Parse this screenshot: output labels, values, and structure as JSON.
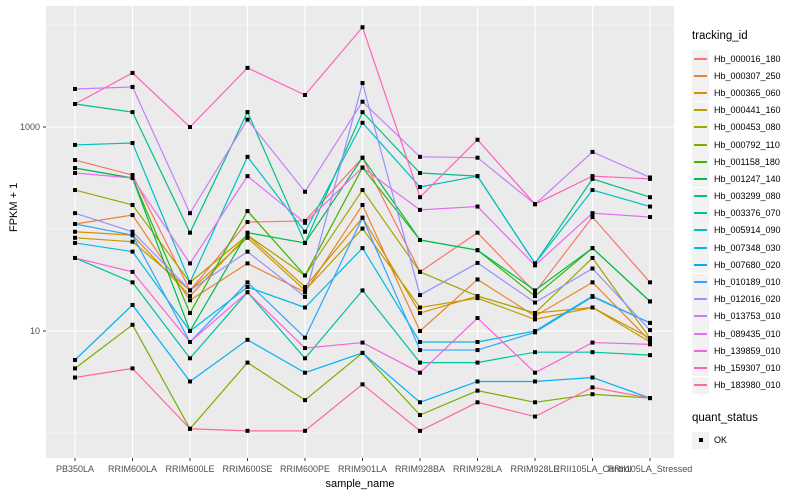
{
  "figure": {
    "y_axis_title": "FPKM + 1",
    "x_axis_title": "sample_name",
    "legend_title": "tracking_id",
    "quant_legend_title": "quant_status",
    "quant_legend_items": [
      "OK"
    ],
    "panel_bg": "#EBEBEB",
    "grid_color": "#FFFFFF",
    "tick_text_color": "#4D4D4D",
    "point_color": "#000000"
  },
  "chart_data": {
    "type": "line",
    "title": "",
    "xlabel": "sample_name",
    "ylabel": "FPKM + 1",
    "y_scale": "log10",
    "ylim": [
      0.57,
      15000
    ],
    "y_tick_values": [
      10,
      1000
    ],
    "y_tick_labels": [
      "10",
      "1000"
    ],
    "y_minor_gridlines": [
      1,
      100,
      10000
    ],
    "grid": true,
    "legend_position": "right",
    "legend_title": "tracking_id",
    "quant_status": {
      "title": "quant_status",
      "items": [
        "OK"
      ]
    },
    "categories": [
      "PB350LA",
      "RRIM600LA",
      "RRIM600LE",
      "RRIM600SE",
      "RRIM600PE",
      "RRIM901LA",
      "RRIM928BA",
      "RRIM928LA",
      "RRIM928LE",
      "RRII105LA_Control",
      "RRII105LA_Stressed"
    ],
    "series": [
      {
        "name": "Hb_000016_180",
        "color": "#F8766D",
        "values": [
          474,
          338,
          25,
          117,
          120,
          500,
          38,
          92,
          24,
          131,
          30
        ]
      },
      {
        "name": "Hb_000307_250",
        "color": "#EA8331",
        "values": [
          112,
          137,
          20,
          46,
          24,
          172,
          10,
          32,
          14,
          30,
          8
        ]
      },
      {
        "name": "Hb_000365_060",
        "color": "#D89000",
        "values": [
          94,
          87,
          22,
          87,
          27,
          129,
          15,
          22,
          15,
          17,
          8.5
        ]
      },
      {
        "name": "Hb_000441_160",
        "color": "#C09B00",
        "values": [
          82,
          75,
          25,
          82,
          25,
          101,
          17,
          21,
          13,
          17,
          7.8
        ]
      },
      {
        "name": "Hb_000453_080",
        "color": "#A3A500",
        "values": [
          241,
          172,
          30,
          87,
          35,
          241,
          38,
          22,
          15,
          52,
          8.5
        ]
      },
      {
        "name": "Hb_000792_110",
        "color": "#7CAE00",
        "values": [
          4.3,
          11.5,
          1.1,
          4.9,
          2.1,
          6.1,
          1.5,
          2.6,
          2.0,
          2.4,
          2.2
        ]
      },
      {
        "name": "Hb_001158_180",
        "color": "#39B600",
        "values": [
          396,
          316,
          15,
          150,
          35,
          400,
          78,
          62,
          22,
          65,
          19.5
        ]
      },
      {
        "name": "Hb_001247_140",
        "color": "#00BB4E",
        "values": [
          396,
          316,
          10,
          92,
          73,
          500,
          78,
          62,
          25,
          65,
          19.5
        ]
      },
      {
        "name": "Hb_003299_080",
        "color": "#00C087",
        "values": [
          1680,
          1400,
          92,
          1400,
          73,
          1400,
          354,
          330,
          46,
          310,
          205
        ]
      },
      {
        "name": "Hb_003376_070",
        "color": "#00C1A3",
        "values": [
          52,
          30,
          5.4,
          24,
          5.4,
          25,
          4.9,
          4.9,
          6.2,
          6.2,
          5.8
        ]
      },
      {
        "name": "Hb_005914_090",
        "color": "#00BFC4",
        "values": [
          667,
          697,
          30,
          510,
          94,
          1100,
          258,
          330,
          46,
          241,
          166
        ]
      },
      {
        "name": "Hb_007348_030",
        "color": "#00BAE0",
        "values": [
          73,
          60,
          10,
          27,
          17,
          65,
          7.8,
          7.8,
          10,
          22,
          12
        ]
      },
      {
        "name": "Hb_007680_020",
        "color": "#00B0F6",
        "values": [
          5.2,
          18,
          3.2,
          8.2,
          3.9,
          6.1,
          2.0,
          3.2,
          3.2,
          3.5,
          2.2
        ]
      },
      {
        "name": "Hb_010189_010",
        "color": "#35A2FF",
        "values": [
          112,
          87,
          7.8,
          30,
          8.6,
          129,
          6.5,
          6.5,
          9.7,
          21.6,
          12
        ]
      },
      {
        "name": "Hb_012016_020",
        "color": "#9590FF",
        "values": [
          143,
          94,
          25,
          60,
          21.6,
          2700,
          22.5,
          46.5,
          19,
          41,
          10.2
        ]
      },
      {
        "name": "Hb_013753_010",
        "color": "#C77CFF",
        "values": [
          2360,
          2470,
          143,
          1180,
          232,
          1770,
          510,
          500,
          175,
          570,
          320
        ]
      },
      {
        "name": "Hb_089435_010",
        "color": "#E76BF3",
        "values": [
          354,
          316,
          46,
          330,
          115,
          400,
          154,
          166,
          44,
          143,
          131
        ]
      },
      {
        "name": "Hb_139859_010",
        "color": "#FA62DB",
        "values": [
          52,
          38,
          7.8,
          24,
          6.8,
          7.7,
          3.9,
          13.4,
          3.9,
          7.7,
          7.4
        ]
      },
      {
        "name": "Hb_159307_010",
        "color": "#FF62BC",
        "values": [
          1680,
          3390,
          1000,
          3800,
          2060,
          9500,
          205,
          750,
          175,
          330,
          310
        ]
      },
      {
        "name": "Hb_183980_010",
        "color": "#FF6A98",
        "values": [
          3.5,
          4.3,
          1.1,
          1.05,
          1.05,
          3.0,
          1.05,
          2.0,
          1.45,
          2.8,
          2.2
        ]
      }
    ]
  }
}
